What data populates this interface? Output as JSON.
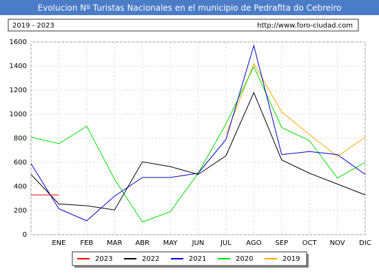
{
  "chart_data": {
    "type": "line",
    "title": "Evolucion Nº Turistas Nacionales en el municipio de Pedrafita do Cebreiro",
    "subtitle": "2019 - 2023",
    "source": "http://www.foro-ciudad.com",
    "categories": [
      null,
      "ENE",
      "FEB",
      "MAR",
      "ABR",
      "MAY",
      "JUN",
      "JUL",
      "AGO",
      "SEP",
      "OCT",
      "NOV",
      "DIC"
    ],
    "series": [
      {
        "name": "2023",
        "color": "#ff0000",
        "values": [
          330,
          330,
          null,
          null,
          null,
          null,
          null,
          null,
          null,
          null,
          null,
          null,
          null
        ]
      },
      {
        "name": "2022",
        "color": "#000000",
        "values": [
          500,
          255,
          240,
          205,
          605,
          565,
          500,
          655,
          1180,
          620,
          510,
          420,
          330
        ]
      },
      {
        "name": "2021",
        "color": "#0000cc",
        "values": [
          590,
          215,
          115,
          320,
          475,
          475,
          510,
          790,
          1570,
          665,
          690,
          665,
          500
        ]
      },
      {
        "name": "2020",
        "color": "#00dd00",
        "values": [
          810,
          755,
          900,
          460,
          105,
          190,
          510,
          920,
          1395,
          890,
          780,
          470,
          600
        ]
      },
      {
        "name": "2019",
        "color": "#ffa500",
        "values": [
          null,
          null,
          null,
          null,
          null,
          null,
          null,
          830,
          1420,
          1020,
          830,
          650,
          810
        ]
      }
    ],
    "ylim": [
      0,
      1600
    ],
    "yticks": [
      0,
      200,
      400,
      600,
      800,
      1000,
      1200,
      1400,
      1600
    ],
    "grid": true
  }
}
